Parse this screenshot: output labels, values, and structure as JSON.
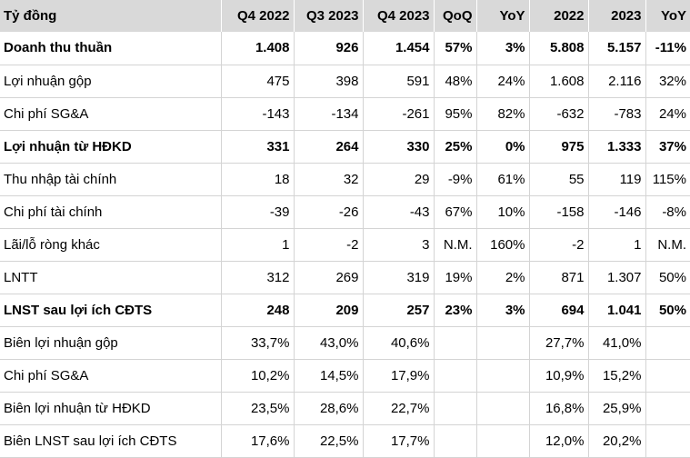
{
  "headers": [
    "Tỷ đồng",
    "Q4 2022",
    "Q3 2023",
    "Q4 2023",
    "QoQ",
    "YoY",
    "2022",
    "2023",
    "YoY"
  ],
  "rows": [
    {
      "label": "Doanh thu thuần",
      "bold": true,
      "values": [
        "1.408",
        "926",
        "1.454",
        "57%",
        "3%",
        "5.808",
        "5.157",
        "-11%"
      ]
    },
    {
      "label": "Lợi nhuận gộp",
      "bold": false,
      "values": [
        "475",
        "398",
        "591",
        "48%",
        "24%",
        "1.608",
        "2.116",
        "32%"
      ]
    },
    {
      "label": "Chi phí SG&A",
      "bold": false,
      "values": [
        "-143",
        "-134",
        "-261",
        "95%",
        "82%",
        "-632",
        "-783",
        "24%"
      ]
    },
    {
      "label": "Lợi nhuận từ HĐKD",
      "bold": true,
      "values": [
        "331",
        "264",
        "330",
        "25%",
        "0%",
        "975",
        "1.333",
        "37%"
      ]
    },
    {
      "label": "Thu nhập tài chính",
      "bold": false,
      "values": [
        "18",
        "32",
        "29",
        "-9%",
        "61%",
        "55",
        "119",
        "115%"
      ]
    },
    {
      "label": "Chi phí tài chính",
      "bold": false,
      "values": [
        "-39",
        "-26",
        "-43",
        "67%",
        "10%",
        "-158",
        "-146",
        "-8%"
      ]
    },
    {
      "label": "Lãi/lỗ ròng khác",
      "bold": false,
      "values": [
        "1",
        "-2",
        "3",
        "N.M.",
        "160%",
        "-2",
        "1",
        "N.M."
      ]
    },
    {
      "label": "LNTT",
      "bold": false,
      "values": [
        "312",
        "269",
        "319",
        "19%",
        "2%",
        "871",
        "1.307",
        "50%"
      ]
    },
    {
      "label": "LNST sau lợi ích CĐTS",
      "bold": true,
      "values": [
        "248",
        "209",
        "257",
        "23%",
        "3%",
        "694",
        "1.041",
        "50%"
      ]
    },
    {
      "label": "Biên lợi nhuận gộp",
      "bold": false,
      "values": [
        "33,7%",
        "43,0%",
        "40,6%",
        "",
        "",
        "27,7%",
        "41,0%",
        ""
      ]
    },
    {
      "label": "Chi phí SG&A",
      "bold": false,
      "values": [
        "10,2%",
        "14,5%",
        "17,9%",
        "",
        "",
        "10,9%",
        "15,2%",
        ""
      ]
    },
    {
      "label": "Biên lợi nhuận từ HĐKD",
      "bold": false,
      "values": [
        "23,5%",
        "28,6%",
        "22,7%",
        "",
        "",
        "16,8%",
        "25,9%",
        ""
      ]
    },
    {
      "label": "Biên LNST sau lợi ích CĐTS",
      "bold": false,
      "values": [
        "17,6%",
        "22,5%",
        "17,7%",
        "",
        "",
        "12,0%",
        "20,2%",
        ""
      ]
    }
  ]
}
